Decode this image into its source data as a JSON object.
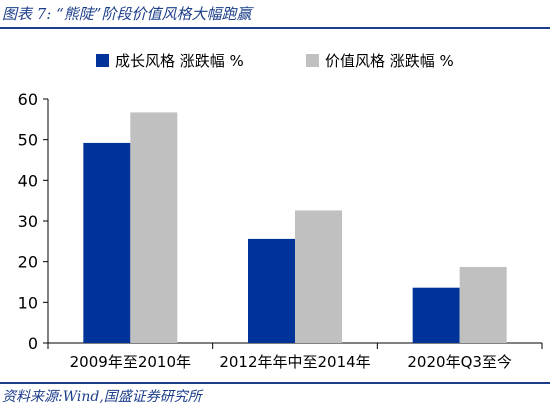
{
  "figure": {
    "title": "图表 7:   “熊陡”阶段价值风格大幅跑赢",
    "source": "资料来源:Wind,国盛证券研究所"
  },
  "chart_data": {
    "type": "bar",
    "categories": [
      "2009年至2010年",
      "2012年年中至2014年",
      "2020年Q3至今"
    ],
    "series": [
      {
        "name": "成长风格 涨跌幅 %",
        "values": [
          49.2,
          25.6,
          13.6
        ],
        "color": "#003399"
      },
      {
        "name": "价值风格 涨跌幅 %",
        "values": [
          56.7,
          32.6,
          18.7
        ],
        "color": "#c0c0c0"
      }
    ],
    "ylim": [
      0,
      60
    ],
    "yticks": [
      0,
      10,
      20,
      30,
      40,
      50,
      60
    ],
    "grid": false,
    "legend_position": "top",
    "xlabel": "",
    "ylabel": ""
  }
}
